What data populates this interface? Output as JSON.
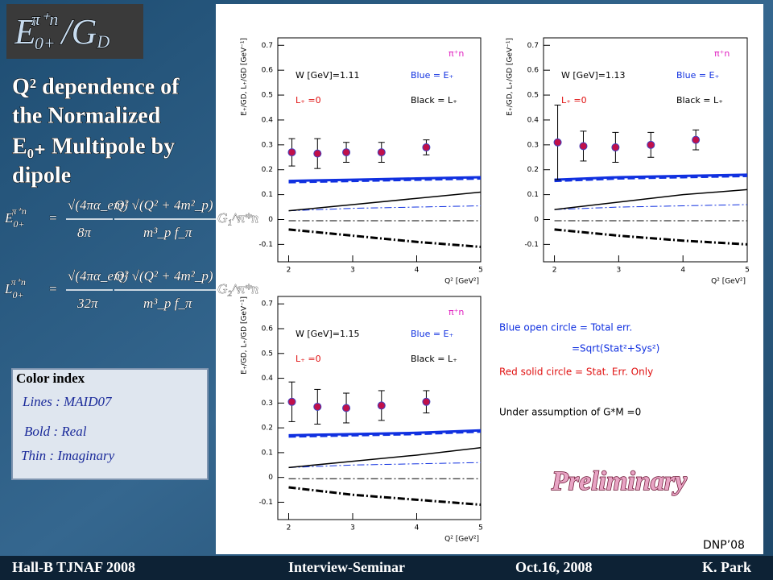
{
  "slide": {
    "title": {
      "main": "E",
      "sub": "0+",
      "sup": "π⁺n",
      "slash": "/G",
      "slash_sub": "D"
    },
    "subtitle": [
      "Q² dependence of",
      "the Normalized",
      "E₀₊ Multipole by",
      "dipole"
    ],
    "equations": [
      {
        "lhs": "E",
        "sub": "0+",
        "sup": "π⁺n",
        "eq": "=",
        "num1": "√(4πα_em)",
        "den1": "8π",
        "num2": "Q² √(Q² + 4m²_p)",
        "den2": "m³_p f_π",
        "factor": "G₁^π*n"
      },
      {
        "lhs": "L",
        "sub": "0+",
        "sup": "π⁺n",
        "eq": "=",
        "num1": "√(4πα_em)",
        "den1": "32π",
        "num2": "Q² √(Q² + 4m²_p)",
        "den2": "m³_p f_π",
        "factor": "G₂^π*n"
      }
    ],
    "color_index": {
      "title": "Color index",
      "items": [
        "Lines : MAID07",
        "Bold : Real",
        "Thin : Imaginary"
      ]
    },
    "notes": [
      "Blue open circle = Total err.",
      "=Sqrt(Stat²+Sys²)",
      "Red solid circle = Stat. Err. Only",
      "Under assumption of G*M =0"
    ],
    "watermark": "Preliminary",
    "tag": "DNP’08",
    "footer": [
      "Hall-B    TJNAF  2008",
      "Interview-Seminar",
      "Oct.16, 2008",
      "K. Park"
    ]
  },
  "chart_data": [
    {
      "type": "scatter",
      "xlabel": "Q² [GeV²]",
      "ylabel": "E₊/GD, L₊/GD [GeV⁻¹]",
      "xlim": [
        1.83,
        5
      ],
      "ylim": [
        -0.17,
        0.73
      ],
      "xticks": [
        2,
        3,
        4,
        5
      ],
      "yticks": [
        -0.1,
        0,
        0.1,
        0.2,
        0.3,
        0.4,
        0.5,
        0.6,
        0.7
      ],
      "annotations": {
        "energy": "W [GeV]=1.11",
        "reaction": "π⁺n",
        "blue_note": "Blue = E₊",
        "black_note": "Black = L₊",
        "zero_note": "L₊ =0"
      },
      "points": {
        "x": [
          2.05,
          2.45,
          2.9,
          3.45,
          4.15
        ],
        "values": [
          0.27,
          0.265,
          0.27,
          0.27,
          0.29
        ],
        "total_errors": [
          0.055,
          0.06,
          0.04,
          0.04,
          0.03
        ],
        "stat_errors": [
          0.01,
          0.01,
          0.01,
          0.01,
          0.01
        ],
        "color": "#c0104a"
      },
      "series": [
        {
          "color": "#1030e0",
          "style": "solid",
          "lw": 3,
          "x": [
            2,
            3,
            4,
            5
          ],
          "values": [
            0.155,
            0.16,
            0.165,
            0.17
          ]
        },
        {
          "color": "#1030e0",
          "style": "dashed",
          "lw": 3,
          "x": [
            2,
            3,
            4,
            5
          ],
          "values": [
            0.15,
            0.155,
            0.16,
            0.165
          ]
        },
        {
          "color": "#1030e0",
          "style": "dashdot",
          "lw": 1,
          "x": [
            2,
            3,
            4,
            5
          ],
          "values": [
            0.035,
            0.045,
            0.05,
            0.055
          ]
        },
        {
          "color": "#000000",
          "style": "solid",
          "lw": 1.5,
          "x": [
            2,
            3,
            4,
            5
          ],
          "values": [
            0.035,
            0.06,
            0.085,
            0.11
          ]
        },
        {
          "color": "#000000",
          "style": "dashdot",
          "lw": 1,
          "x": [
            2,
            3,
            4,
            5
          ],
          "values": [
            -0.005,
            -0.005,
            -0.005,
            -0.005
          ]
        },
        {
          "color": "#000000",
          "style": "dashdot",
          "lw": 3,
          "x": [
            2,
            3,
            4,
            5
          ],
          "values": [
            -0.04,
            -0.065,
            -0.09,
            -0.11
          ]
        }
      ]
    },
    {
      "type": "scatter",
      "xlabel": "Q² [GeV²]",
      "ylabel": "E₊/GD, L₊/GD [GeV⁻¹]",
      "xlim": [
        1.83,
        5
      ],
      "ylim": [
        -0.17,
        0.73
      ],
      "xticks": [
        2,
        3,
        4,
        5
      ],
      "yticks": [
        -0.1,
        0,
        0.1,
        0.2,
        0.3,
        0.4,
        0.5,
        0.6,
        0.7
      ],
      "annotations": {
        "energy": "W [GeV]=1.13",
        "reaction": "π⁺n",
        "blue_note": "Blue = E₊",
        "black_note": "Black = L₊",
        "zero_note": "L₊ =0"
      },
      "points": {
        "x": [
          2.05,
          2.45,
          2.95,
          3.5,
          4.2
        ],
        "values": [
          0.31,
          0.295,
          0.29,
          0.3,
          0.32
        ],
        "total_errors": [
          0.15,
          0.06,
          0.06,
          0.05,
          0.04
        ],
        "stat_errors": [
          0.01,
          0.01,
          0.01,
          0.01,
          0.01
        ],
        "color": "#c0104a"
      },
      "series": [
        {
          "color": "#1030e0",
          "style": "solid",
          "lw": 3,
          "x": [
            2,
            3,
            4,
            5
          ],
          "values": [
            0.16,
            0.17,
            0.175,
            0.18
          ]
        },
        {
          "color": "#1030e0",
          "style": "dashed",
          "lw": 3,
          "x": [
            2,
            3,
            4,
            5
          ],
          "values": [
            0.155,
            0.165,
            0.17,
            0.175
          ]
        },
        {
          "color": "#1030e0",
          "style": "dashdot",
          "lw": 1,
          "x": [
            2,
            3,
            4,
            5
          ],
          "values": [
            0.04,
            0.05,
            0.055,
            0.06
          ]
        },
        {
          "color": "#000000",
          "style": "solid",
          "lw": 1.5,
          "x": [
            2,
            3,
            4,
            5
          ],
          "values": [
            0.04,
            0.07,
            0.1,
            0.12
          ]
        },
        {
          "color": "#000000",
          "style": "dashdot",
          "lw": 1,
          "x": [
            2,
            3,
            4,
            5
          ],
          "values": [
            -0.005,
            -0.005,
            -0.005,
            -0.005
          ]
        },
        {
          "color": "#000000",
          "style": "dashdot",
          "lw": 3,
          "x": [
            2,
            3,
            4,
            5
          ],
          "values": [
            -0.04,
            -0.065,
            -0.085,
            -0.1
          ]
        }
      ]
    },
    {
      "type": "scatter",
      "xlabel": "Q² [GeV²]",
      "ylabel": "E₊/GD, L₊/GD [GeV⁻¹]",
      "xlim": [
        1.83,
        5
      ],
      "ylim": [
        -0.17,
        0.73
      ],
      "xticks": [
        2,
        3,
        4,
        5
      ],
      "yticks": [
        -0.1,
        0,
        0.1,
        0.2,
        0.3,
        0.4,
        0.5,
        0.6,
        0.7
      ],
      "annotations": {
        "energy": "W [GeV]=1.15",
        "reaction": "π⁺n",
        "blue_note": "Blue = E₊",
        "black_note": "Black = L₊",
        "zero_note": "L₊ =0"
      },
      "points": {
        "x": [
          2.05,
          2.45,
          2.9,
          3.45,
          4.15
        ],
        "values": [
          0.305,
          0.285,
          0.28,
          0.29,
          0.305
        ],
        "total_errors": [
          0.08,
          0.07,
          0.06,
          0.06,
          0.045
        ],
        "stat_errors": [
          0.01,
          0.01,
          0.01,
          0.01,
          0.01
        ],
        "color": "#c0104a"
      },
      "series": [
        {
          "color": "#1030e0",
          "style": "solid",
          "lw": 3,
          "x": [
            2,
            3,
            4,
            5
          ],
          "values": [
            0.17,
            0.175,
            0.18,
            0.19
          ]
        },
        {
          "color": "#1030e0",
          "style": "dashed",
          "lw": 3,
          "x": [
            2,
            3,
            4,
            5
          ],
          "values": [
            0.165,
            0.17,
            0.175,
            0.185
          ]
        },
        {
          "color": "#1030e0",
          "style": "dashdot",
          "lw": 1,
          "x": [
            2,
            3,
            4,
            5
          ],
          "values": [
            0.04,
            0.05,
            0.055,
            0.06
          ]
        },
        {
          "color": "#000000",
          "style": "solid",
          "lw": 1.5,
          "x": [
            2,
            3,
            4,
            5
          ],
          "values": [
            0.04,
            0.065,
            0.09,
            0.12
          ]
        },
        {
          "color": "#000000",
          "style": "dashdot",
          "lw": 1,
          "x": [
            2,
            3,
            4,
            5
          ],
          "values": [
            -0.005,
            -0.005,
            -0.005,
            -0.005
          ]
        },
        {
          "color": "#000000",
          "style": "dashdot",
          "lw": 3,
          "x": [
            2,
            3,
            4,
            5
          ],
          "values": [
            -0.04,
            -0.07,
            -0.09,
            -0.11
          ]
        }
      ]
    }
  ]
}
